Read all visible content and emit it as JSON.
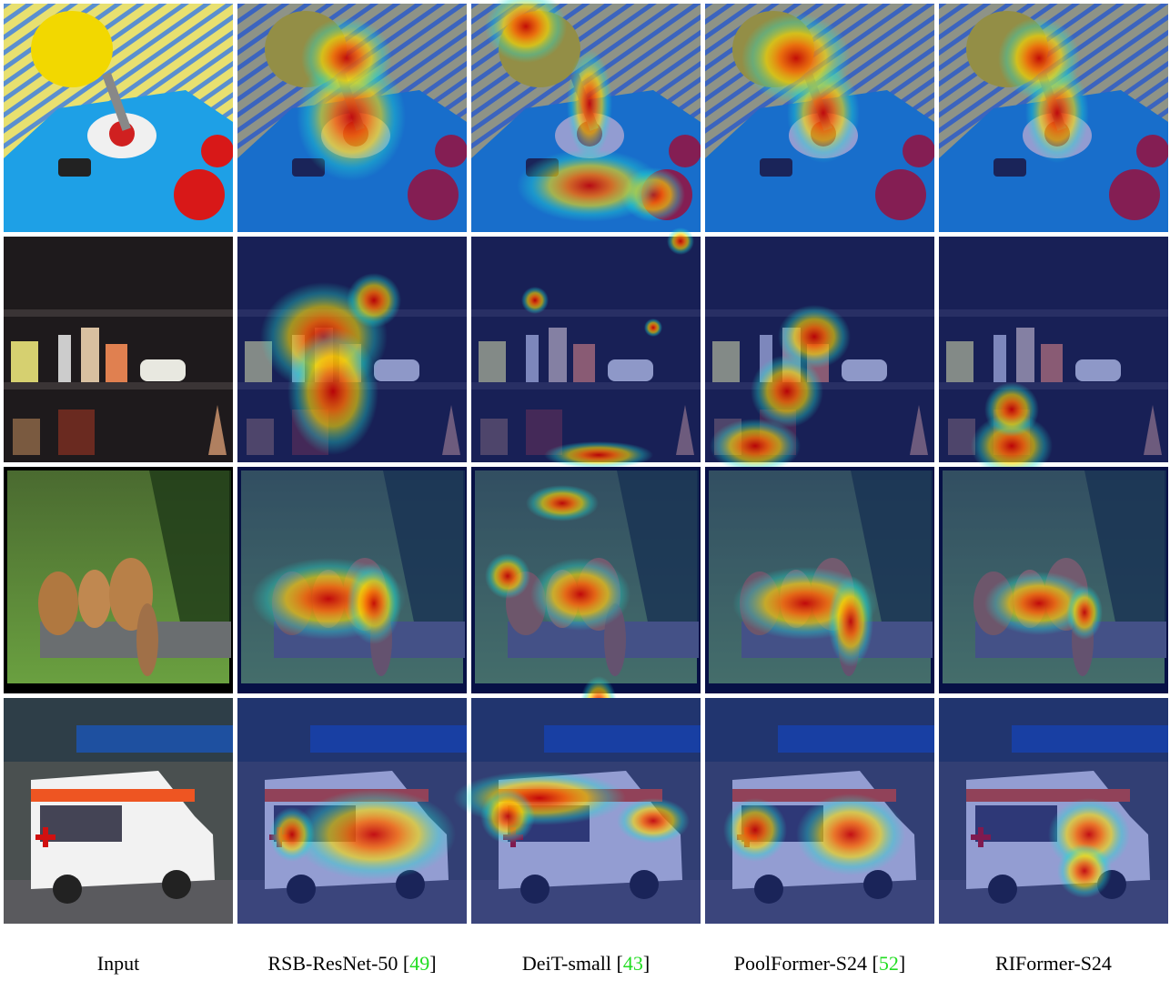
{
  "figure": {
    "columns": [
      {
        "segments": [
          {
            "text": "Input"
          }
        ]
      },
      {
        "segments": [
          {
            "text": "RSB-ResNet-50 ["
          },
          {
            "text": "49",
            "cite": true
          },
          {
            "text": "]"
          }
        ]
      },
      {
        "segments": [
          {
            "text": "DeiT-small ["
          },
          {
            "text": "43",
            "cite": true
          },
          {
            "text": "]"
          }
        ]
      },
      {
        "segments": [
          {
            "text": "PoolFormer-S24 ["
          },
          {
            "text": "52",
            "cite": true
          },
          {
            "text": "]"
          }
        ]
      },
      {
        "segments": [
          {
            "text": "RIFormer-S24"
          }
        ]
      }
    ]
  }
}
